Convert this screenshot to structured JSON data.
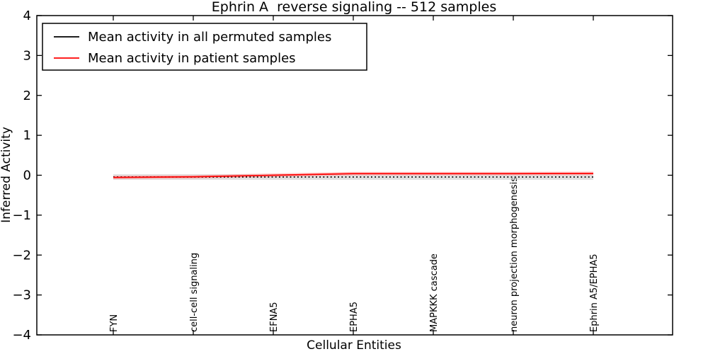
{
  "chart_data": {
    "type": "line",
    "title": "Ephrin A  reverse signaling -- 512 samples",
    "xlabel": "Cellular Entities",
    "ylabel": "Inferred Activity",
    "categories": [
      "FYN",
      "cell-cell signaling",
      "EFNA5",
      "EPHA5",
      "MAPKKK cascade",
      "neuron projection morphogenesis",
      "Ephrin A5/EPHA5"
    ],
    "series": [
      {
        "name": "Mean activity in all permuted samples",
        "color": "#000000",
        "linestyle": "dotted",
        "values": [
          -0.045,
          -0.045,
          -0.045,
          -0.045,
          -0.045,
          -0.045,
          -0.045
        ],
        "band": {
          "halfwidth": 0.07,
          "color": "#c8c8c8",
          "opacity": 0.55
        }
      },
      {
        "name": "Mean activity in patient samples",
        "color": "#ff0000",
        "linestyle": "solid",
        "values": [
          -0.055,
          -0.04,
          0.0,
          0.04,
          0.04,
          0.04,
          0.045
        ],
        "band": {
          "halfwidth": 0.045,
          "color": "#ff8888",
          "opacity": 0.45
        }
      }
    ],
    "ylim": [
      -4,
      4
    ],
    "yticks": [
      -4,
      -3,
      -2,
      -1,
      0,
      1,
      2,
      3,
      4
    ],
    "grid": false,
    "legend_position": "upper left"
  }
}
